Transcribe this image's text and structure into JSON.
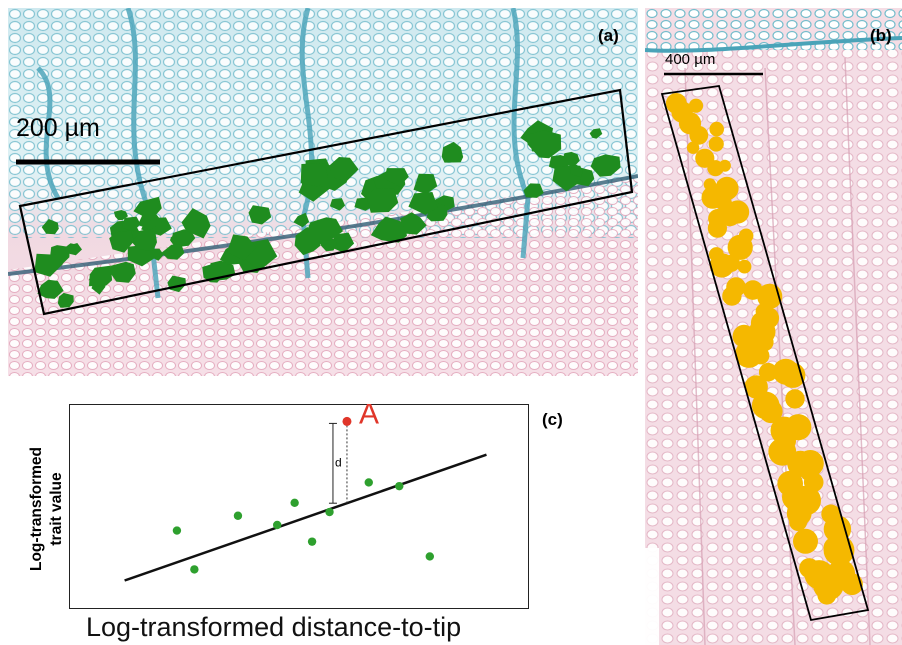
{
  "figure": {
    "panel_a": {
      "label": "(a)",
      "scale_bar_text": "200 µm",
      "vessel_color": "#1f8c1f",
      "stain_blue": "#6fb8c9",
      "stain_pink": "#e9b8c8"
    },
    "panel_b": {
      "label": "(b)",
      "scale_bar_text": "400 µm",
      "vessel_color": "#f5b800"
    },
    "panel_c": {
      "label": "(c)",
      "point_label": "A",
      "distance_label": "d",
      "point_color": "#2ea02e",
      "highlight_color": "#e0362a"
    }
  },
  "chart_data": {
    "type": "scatter",
    "title": "",
    "xlabel": "Log-transformed distance-to-tip",
    "ylabel_lines": [
      "Log-transformed",
      "trait value"
    ],
    "grid": false,
    "xlim": [
      0,
      100
    ],
    "ylim": [
      0,
      100
    ],
    "series": [
      {
        "x": [
          22,
          26,
          36,
          45,
          49,
          53,
          57,
          66,
          73,
          80
        ],
        "y": [
          37,
          16,
          45,
          40,
          52,
          31,
          47,
          63,
          61,
          23
        ]
      },
      {
        "x": [
          61
        ],
        "y": [
          96
        ]
      }
    ],
    "trend_line": {
      "x": [
        10,
        93
      ],
      "y": [
        10,
        78
      ]
    }
  }
}
